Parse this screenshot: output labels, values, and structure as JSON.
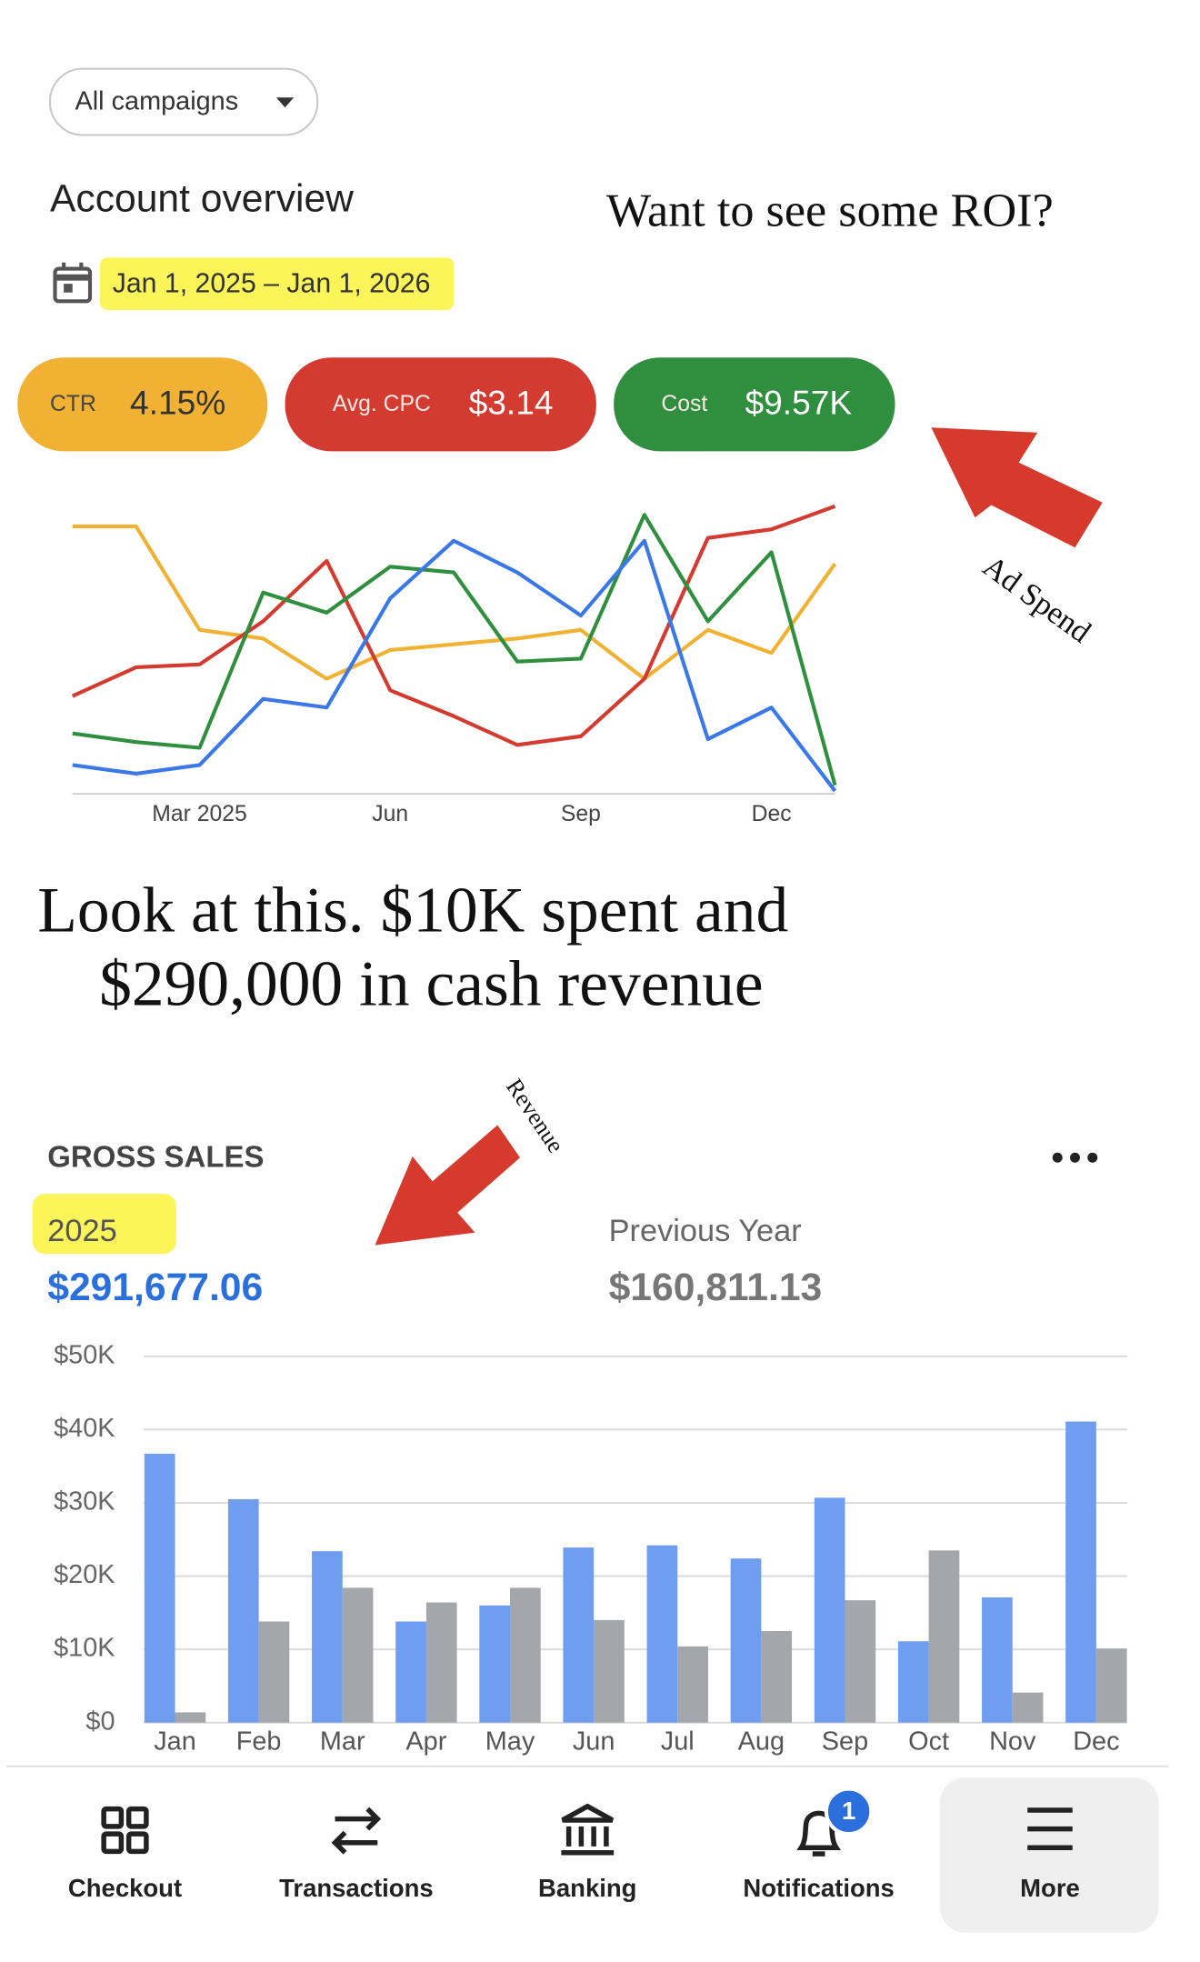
{
  "filter": "All campaigns",
  "heading": "Account overview",
  "date_range": "Jan 1, 2025 – Jan 1, 2026",
  "caption": "Want to see some ROI?",
  "ad_spend_note": "Ad Spend",
  "headline": [
    "Look at this. $10K spent and",
    "$290,000 in cash revenue"
  ],
  "revenue_note": "Revenue",
  "chart_data": [
    {
      "type": "line",
      "categories": [
        null,
        null,
        "Mar 2025",
        null,
        null,
        "Jun",
        null,
        null,
        "Sep",
        null,
        null,
        "Dec",
        null
      ],
      "ylim": [
        0,
        100
      ],
      "series": [
        {
          "name": "CTR",
          "summary": "4.15%",
          "color": "#f1b233",
          "values": [
            93,
            93,
            57,
            54,
            40,
            50,
            52,
            54,
            57,
            40,
            57,
            49,
            80
          ]
        },
        {
          "name": "Avg. CPC",
          "summary": "$3.14",
          "color": "#d33b30",
          "values": [
            34,
            44,
            45,
            60,
            81,
            36,
            27,
            17,
            20,
            40,
            89,
            92,
            100
          ]
        },
        {
          "name": "Cost",
          "summary": "$9.57K",
          "color": "#2f8f3e",
          "values": [
            21,
            18,
            16,
            70,
            63,
            79,
            77,
            46,
            47,
            97,
            60,
            84,
            3
          ]
        },
        {
          "color": "#3b78e7",
          "values": [
            10,
            7,
            10,
            33,
            30,
            68,
            88,
            77,
            62,
            88,
            19,
            30,
            1
          ]
        }
      ]
    },
    {
      "type": "bar",
      "title": "GROSS SALES",
      "categories": [
        "Jan",
        "Feb",
        "Mar",
        "Apr",
        "May",
        "Jun",
        "Jul",
        "Aug",
        "Sep",
        "Oct",
        "Nov",
        "Dec"
      ],
      "ylim": [
        0,
        50000
      ],
      "yticks": [
        {
          "value": 0,
          "label": "$0"
        },
        {
          "value": 10000,
          "label": "$10K"
        },
        {
          "value": 20000,
          "label": "$20K"
        },
        {
          "value": 30000,
          "label": "$30K"
        },
        {
          "value": 40000,
          "label": "$40K"
        },
        {
          "value": 50000,
          "label": "$50K"
        }
      ],
      "grid": true,
      "series": [
        {
          "name": "2025",
          "summary": "$291,677.06",
          "color": "#6f9ef0",
          "values": [
            36700,
            30500,
            23400,
            13800,
            16000,
            23900,
            24200,
            22400,
            30700,
            11100,
            17100,
            41100
          ]
        },
        {
          "name": "Previous Year",
          "summary": "$160,811.13",
          "color": "#a3a6ab",
          "values": [
            1400,
            13800,
            18400,
            16400,
            18400,
            14000,
            10400,
            12500,
            16700,
            23500,
            4100,
            10100
          ]
        }
      ]
    }
  ],
  "nav": [
    {
      "label": "Checkout"
    },
    {
      "label": "Transactions"
    },
    {
      "label": "Banking"
    },
    {
      "label": "Notifications",
      "badge": 1
    },
    {
      "label": "More"
    }
  ]
}
